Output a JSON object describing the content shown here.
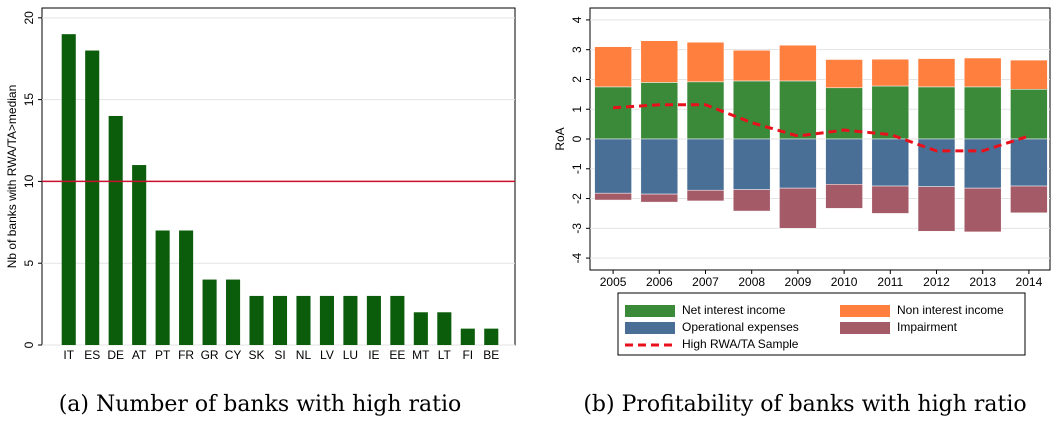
{
  "chart_data": [
    {
      "type": "bar",
      "caption": "(a) Number of banks with high ratio",
      "ylabel": "Nb of banks with RWA/TA>median",
      "categories": [
        "IT",
        "ES",
        "DE",
        "AT",
        "PT",
        "FR",
        "GR",
        "CY",
        "SK",
        "SI",
        "NL",
        "LV",
        "LU",
        "IE",
        "EE",
        "MT",
        "LT",
        "FI",
        "BE"
      ],
      "values": [
        19,
        18,
        14,
        11,
        7,
        7,
        4,
        4,
        3,
        3,
        3,
        3,
        3,
        3,
        3,
        2,
        2,
        1,
        1
      ],
      "color": "#0b5d0b",
      "ylim": [
        0,
        20.6
      ],
      "yticks": [
        0,
        5,
        10,
        15,
        20
      ],
      "grid": true,
      "hline": 10,
      "hline_color": "#c8102e"
    },
    {
      "type": "stacked-bar",
      "caption": "(b) Profitability of banks with high ratio",
      "ylabel": "RoA",
      "categories": [
        "2005",
        "2006",
        "2007",
        "2008",
        "2009",
        "2010",
        "2011",
        "2012",
        "2013",
        "2014"
      ],
      "series": [
        {
          "name": "Net interest income",
          "color": "#3a8a3a",
          "values": [
            1.75,
            1.9,
            1.92,
            1.95,
            1.95,
            1.72,
            1.78,
            1.75,
            1.75,
            1.67
          ]
        },
        {
          "name": "Non interest income",
          "color": "#ff7f3f",
          "values": [
            1.35,
            1.4,
            1.33,
            1.03,
            1.2,
            0.95,
            0.9,
            0.95,
            0.97,
            0.98
          ]
        },
        {
          "name": "Operational expenses",
          "color": "#4a6f96",
          "values": [
            -1.82,
            -1.85,
            -1.72,
            -1.7,
            -1.65,
            -1.52,
            -1.58,
            -1.6,
            -1.65,
            -1.58
          ]
        },
        {
          "name": "Impairment",
          "color": "#a55a68",
          "values": [
            -0.23,
            -0.27,
            -0.36,
            -0.72,
            -1.35,
            -0.81,
            -0.92,
            -1.5,
            -1.47,
            -0.9
          ]
        }
      ],
      "lines": [
        {
          "name": "High RWA/TA Sample",
          "color": "#e8101a",
          "linestyle": "dashed",
          "values": [
            1.05,
            1.15,
            1.15,
            0.55,
            0.1,
            0.3,
            0.15,
            -0.4,
            -0.4,
            0.1
          ]
        }
      ],
      "ylim": [
        -4.4,
        4.4
      ],
      "yticks": [
        -4,
        -3,
        -2,
        -1,
        0,
        1,
        2,
        3,
        4
      ],
      "grid": true
    }
  ]
}
